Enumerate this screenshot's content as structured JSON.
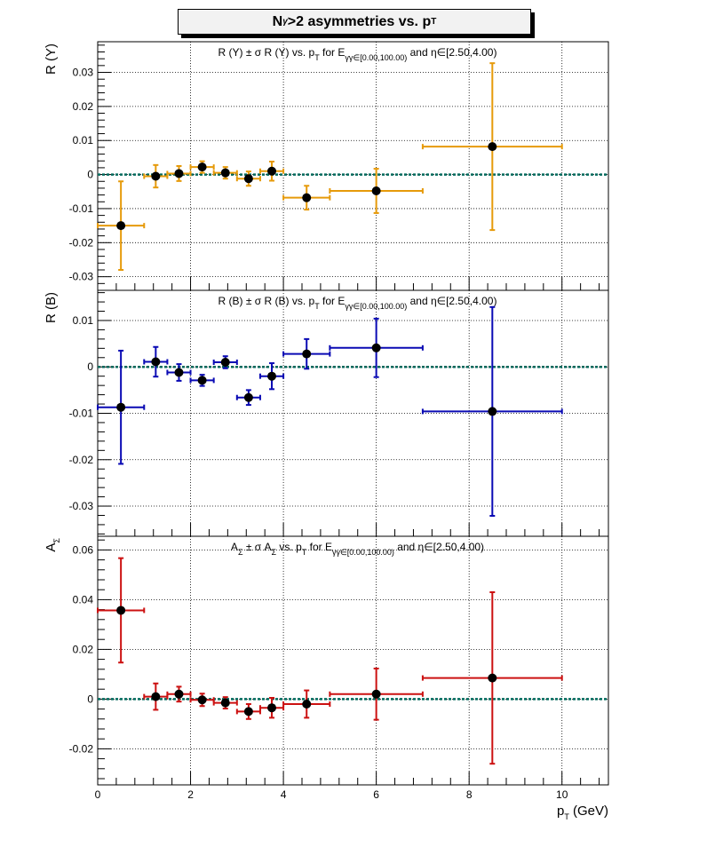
{
  "figure_title": {
    "main": "N",
    "sub": "γ",
    "rest": ">2 asymmetries vs. p",
    "sub2": "T"
  },
  "x_axis_title": "p_T (GeV)",
  "chart_data": [
    {
      "type": "scatter",
      "title": "R (Y) ± σ R (Y) vs. p_T for E_γγ∈[0.00,100.00) and η∈[2.50,4.00)",
      "ylabel": "R (Y)",
      "color": "#e69a0a",
      "xlim": [
        0,
        11
      ],
      "ylim": [
        -0.034,
        0.039
      ],
      "yticks": [
        -0.03,
        -0.02,
        -0.01,
        0,
        0.01,
        0.02,
        0.03
      ],
      "ytick_labels": [
        "-0.03",
        "-0.02",
        "-0.01",
        "0",
        "0.01",
        "0.02",
        "0.03"
      ],
      "points": [
        {
          "x": 0.5,
          "xerr": 0.5,
          "y": -0.015,
          "yerr": 0.013
        },
        {
          "x": 1.25,
          "xerr": 0.25,
          "y": -0.0005,
          "yerr": 0.0033
        },
        {
          "x": 1.75,
          "xerr": 0.25,
          "y": 0.0003,
          "yerr": 0.0022
        },
        {
          "x": 2.25,
          "xerr": 0.25,
          "y": 0.0022,
          "yerr": 0.0017
        },
        {
          "x": 2.75,
          "xerr": 0.25,
          "y": 0.0005,
          "yerr": 0.0017
        },
        {
          "x": 3.25,
          "xerr": 0.25,
          "y": -0.0012,
          "yerr": 0.0021
        },
        {
          "x": 3.75,
          "xerr": 0.25,
          "y": 0.001,
          "yerr": 0.0028
        },
        {
          "x": 4.5,
          "xerr": 0.5,
          "y": -0.0068,
          "yerr": 0.0035
        },
        {
          "x": 6.0,
          "xerr": 1.0,
          "y": -0.0048,
          "yerr": 0.0065
        },
        {
          "x": 8.5,
          "xerr": 1.5,
          "y": 0.0082,
          "yerr": 0.0245
        }
      ]
    },
    {
      "type": "scatter",
      "title": "R (B) ± σ R (B) vs. p_T for E_γγ∈[0.00,100.00) and η∈[2.50,4.00)",
      "ylabel": "R (B)",
      "color": "#0a0ab4",
      "xlim": [
        0,
        11
      ],
      "ylim": [
        -0.0365,
        0.0165
      ],
      "yticks": [
        -0.03,
        -0.02,
        -0.01,
        0,
        0.01
      ],
      "ytick_labels": [
        "-0.03",
        "-0.02",
        "-0.01",
        "0",
        "0.01"
      ],
      "points": [
        {
          "x": 0.5,
          "xerr": 0.5,
          "y": -0.0087,
          "yerr": 0.0122
        },
        {
          "x": 1.25,
          "xerr": 0.25,
          "y": 0.0011,
          "yerr": 0.0032
        },
        {
          "x": 1.75,
          "xerr": 0.25,
          "y": -0.0012,
          "yerr": 0.0018
        },
        {
          "x": 2.25,
          "xerr": 0.25,
          "y": -0.0029,
          "yerr": 0.0012
        },
        {
          "x": 2.75,
          "xerr": 0.25,
          "y": 0.001,
          "yerr": 0.0013
        },
        {
          "x": 3.25,
          "xerr": 0.25,
          "y": -0.0066,
          "yerr": 0.0016
        },
        {
          "x": 3.75,
          "xerr": 0.25,
          "y": -0.002,
          "yerr": 0.0028
        },
        {
          "x": 4.5,
          "xerr": 0.5,
          "y": 0.0028,
          "yerr": 0.0032
        },
        {
          "x": 6.0,
          "xerr": 1.0,
          "y": 0.0041,
          "yerr": 0.0063
        },
        {
          "x": 8.5,
          "xerr": 1.5,
          "y": -0.0096,
          "yerr": 0.0225
        }
      ]
    },
    {
      "type": "scatter",
      "title": "A_Σ ± σ A_Σ vs. p_T for E_γγ∈[0.00,100.00) and η∈[2.50,4.00)",
      "ylabel": "A_Σ",
      "color": "#cc1111",
      "xlim": [
        0,
        11
      ],
      "ylim": [
        -0.0345,
        0.0655
      ],
      "yticks": [
        -0.02,
        0,
        0.02,
        0.04,
        0.06
      ],
      "ytick_labels": [
        "-0.02",
        "0",
        "0.02",
        "0.04",
        "0.06"
      ],
      "xticks": [
        0,
        2,
        4,
        6,
        8,
        10
      ],
      "xtick_labels": [
        "0",
        "2",
        "4",
        "6",
        "8",
        "10"
      ],
      "points": [
        {
          "x": 0.5,
          "xerr": 0.5,
          "y": 0.0357,
          "yerr": 0.021
        },
        {
          "x": 1.25,
          "xerr": 0.25,
          "y": 0.001,
          "yerr": 0.0053
        },
        {
          "x": 1.75,
          "xerr": 0.25,
          "y": 0.002,
          "yerr": 0.003
        },
        {
          "x": 2.25,
          "xerr": 0.25,
          "y": -0.0003,
          "yerr": 0.0025
        },
        {
          "x": 2.75,
          "xerr": 0.25,
          "y": -0.0015,
          "yerr": 0.0023
        },
        {
          "x": 3.25,
          "xerr": 0.25,
          "y": -0.005,
          "yerr": 0.003
        },
        {
          "x": 3.75,
          "xerr": 0.25,
          "y": -0.0035,
          "yerr": 0.004
        },
        {
          "x": 4.5,
          "xerr": 0.5,
          "y": -0.002,
          "yerr": 0.0055
        },
        {
          "x": 6.0,
          "xerr": 1.0,
          "y": 0.002,
          "yerr": 0.0103
        },
        {
          "x": 8.5,
          "xerr": 1.5,
          "y": 0.0085,
          "yerr": 0.0345
        }
      ]
    }
  ],
  "zero_line_color": "#00695c",
  "grid": true
}
